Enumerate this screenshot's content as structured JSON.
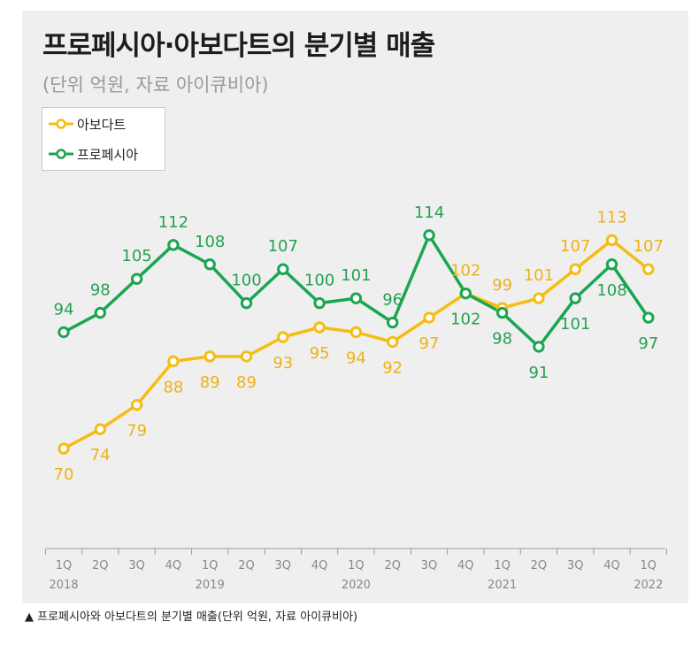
{
  "title": "프로페시아·아보다트의 분기별 매출",
  "subtitle": "(단위 억원, 자료 아이큐비아)",
  "caption": "▲ 프로페시아와 아보다트의 분기별 매출(단위 억원, 자료 아이큐비아)",
  "colors": {
    "avodart": "#f5bd12",
    "propecia": "#1aa650",
    "avodart_label": "#eeb214",
    "propecia_label": "#25a152",
    "axis": "#9c9c9c",
    "panel": "#efefef"
  },
  "chart_data": {
    "type": "line",
    "title": "프로페시아·아보다트의 분기별 매출",
    "subtitle": "(단위 억원, 자료 아이큐비아)",
    "quarters": [
      "1Q",
      "2Q",
      "3Q",
      "4Q",
      "1Q",
      "2Q",
      "3Q",
      "4Q",
      "1Q",
      "2Q",
      "3Q",
      "4Q",
      "1Q",
      "2Q",
      "3Q",
      "4Q",
      "1Q"
    ],
    "years": [
      "2018",
      "",
      "",
      "",
      "2019",
      "",
      "",
      "",
      "2020",
      "",
      "",
      "",
      "2021",
      "",
      "",
      "",
      "2022"
    ],
    "legend_position": "top-left",
    "grid": false,
    "series": [
      {
        "name": "아보다트",
        "values": [
          70,
          74,
          79,
          88,
          89,
          89,
          93,
          95,
          94,
          92,
          97,
          102,
          99,
          101,
          107,
          113,
          107
        ],
        "label_position": [
          "below",
          "below",
          "below",
          "below",
          "below",
          "below",
          "below",
          "below",
          "below",
          "below",
          "below",
          "above",
          "above",
          "above",
          "above",
          "above",
          "above"
        ]
      },
      {
        "name": "프로페시아",
        "values": [
          94,
          98,
          105,
          112,
          108,
          100,
          107,
          100,
          101,
          96,
          114,
          102,
          98,
          91,
          101,
          108,
          97
        ],
        "label_position": [
          "above",
          "above",
          "above",
          "above",
          "above",
          "above",
          "above",
          "above",
          "above",
          "above",
          "above",
          "below",
          "below",
          "below",
          "below",
          "below",
          "below"
        ]
      }
    ]
  }
}
